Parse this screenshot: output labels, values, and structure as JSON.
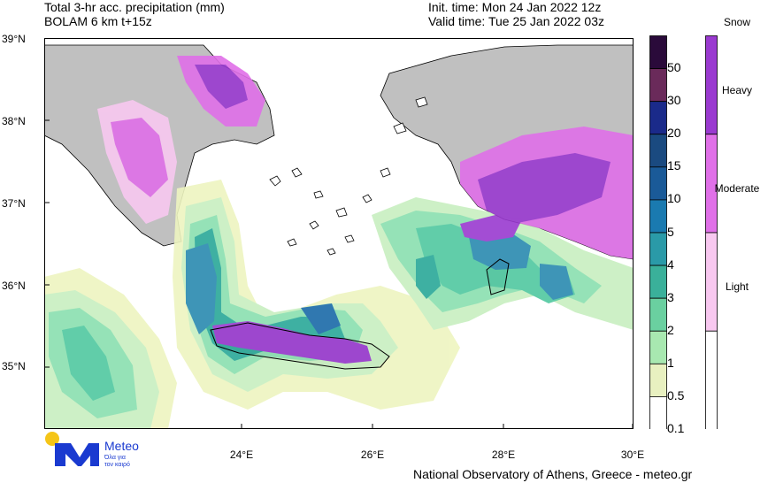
{
  "header": {
    "title_line1": "Total 3-hr acc. precipitation (mm)",
    "title_line2": "BOLAM 6 km t+15z",
    "init_time": "Init. time: Mon 24 Jan 2022 12z",
    "valid_time": "Valid time: Tue 25 Jan 2022 03z"
  },
  "map": {
    "lat_labels": [
      "39°N",
      "38°N",
      "37°N",
      "36°N",
      "35°N"
    ],
    "lon_labels": [
      "24°E",
      "26°E",
      "28°E",
      "30°E"
    ],
    "colors": {
      "land": "#c0c0c0",
      "sea": "#ffffff",
      "p0_5": "#eef5c0",
      "p1": "#c8efc0",
      "p2": "#8adfb0",
      "p3": "#50c8a0",
      "p4": "#2aa898",
      "p5": "#2a8ab0",
      "p10": "#1a6aa8",
      "snow_light": "#f8c8f0",
      "snow_moderate": "#e070e8",
      "snow_heavy": "#9a3ad0"
    }
  },
  "colorbar": {
    "labels": [
      "50",
      "30",
      "20",
      "15",
      "10",
      "5",
      "4",
      "3",
      "2",
      "1",
      "0.5",
      "0.1"
    ],
    "colors": [
      "#2a0a3a",
      "#6a2a5a",
      "#1a2a8a",
      "#1a4a80",
      "#1a5a98",
      "#1a7ab0",
      "#2a9aa8",
      "#3ab09a",
      "#6ad0a0",
      "#a8e8b0",
      "#e8f0c0",
      "#ffffff"
    ]
  },
  "snowbar": {
    "title": "Snow",
    "labels": [
      "Heavy",
      "Moderate",
      "Light"
    ],
    "colors": [
      "#9a3ad0",
      "#e070e8",
      "#f8c8f0",
      "#ffffff"
    ]
  },
  "logo": {
    "name": "Meteo",
    "tagline_line1": "Όλα για",
    "tagline_line2": "τον καιρό"
  },
  "footer": "National Observatory of Athens, Greece - meteo.gr"
}
